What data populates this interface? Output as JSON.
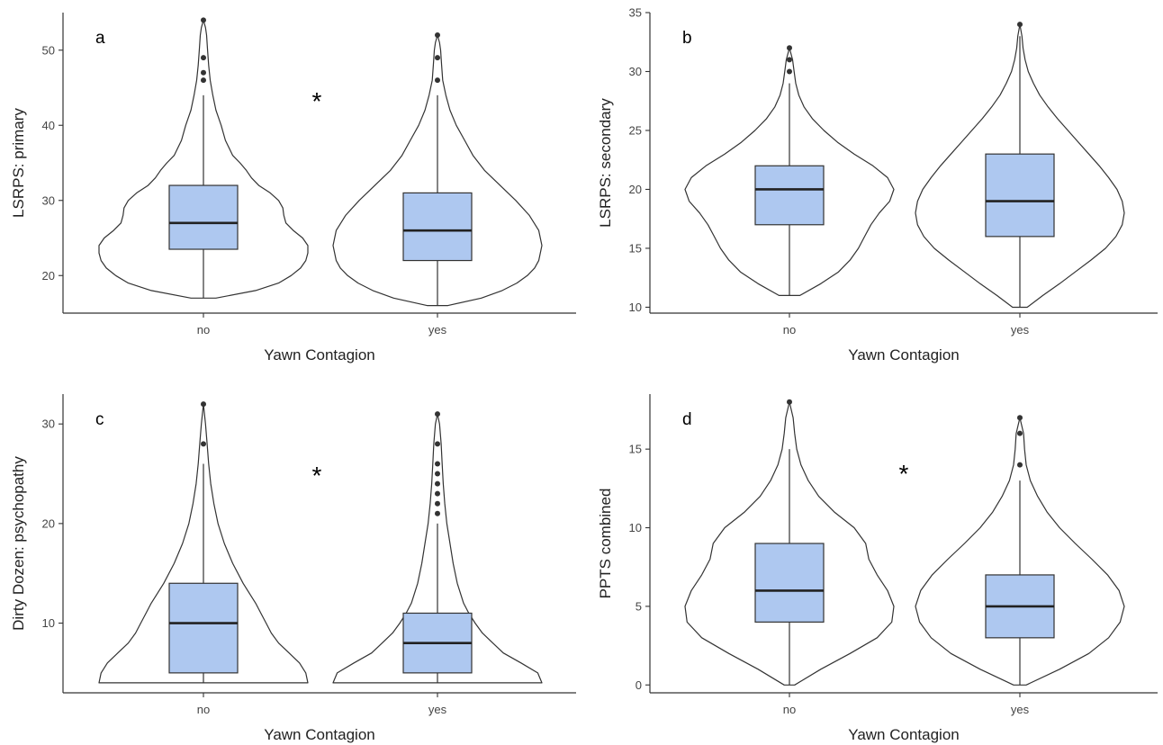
{
  "figure": {
    "background": "#ffffff",
    "box_color": "#aec8f0"
  },
  "chart_data": [
    {
      "panel": "a",
      "type": "violin-box",
      "xlabel": "Yawn Contagion",
      "ylabel": "LSRPS: primary",
      "ylim": [
        15,
        55
      ],
      "yticks": [
        20,
        30,
        40,
        50
      ],
      "significance": "*",
      "categories": [
        "no",
        "yes"
      ],
      "groups": [
        {
          "name": "no",
          "q1": 23.5,
          "median": 27,
          "q3": 32,
          "whisker_low": 17,
          "whisker_high": 44,
          "outliers": [
            46,
            47,
            49,
            54
          ],
          "density": [
            [
              17,
              0.12
            ],
            [
              18,
              0.5
            ],
            [
              19,
              0.72
            ],
            [
              20,
              0.84
            ],
            [
              21,
              0.93
            ],
            [
              22,
              0.98
            ],
            [
              23,
              1.0
            ],
            [
              24,
              1.0
            ],
            [
              25,
              0.95
            ],
            [
              26,
              0.86
            ],
            [
              27,
              0.79
            ],
            [
              28,
              0.77
            ],
            [
              29,
              0.76
            ],
            [
              30,
              0.72
            ],
            [
              31,
              0.64
            ],
            [
              32,
              0.53
            ],
            [
              33,
              0.46
            ],
            [
              34,
              0.41
            ],
            [
              35,
              0.35
            ],
            [
              36,
              0.28
            ],
            [
              38,
              0.21
            ],
            [
              40,
              0.17
            ],
            [
              42,
              0.12
            ],
            [
              44,
              0.09
            ],
            [
              46,
              0.065
            ],
            [
              48,
              0.05
            ],
            [
              50,
              0.04
            ],
            [
              52,
              0.03
            ],
            [
              53,
              0.02
            ],
            [
              54,
              0.0
            ]
          ]
        },
        {
          "name": "yes",
          "q1": 22,
          "median": 26,
          "q3": 31,
          "whisker_low": 16,
          "whisker_high": 44,
          "outliers": [
            46,
            49,
            52
          ],
          "density": [
            [
              16,
              0.1
            ],
            [
              17,
              0.42
            ],
            [
              18,
              0.62
            ],
            [
              19,
              0.76
            ],
            [
              20,
              0.86
            ],
            [
              21,
              0.93
            ],
            [
              22,
              0.97
            ],
            [
              24,
              1.0
            ],
            [
              26,
              0.97
            ],
            [
              28,
              0.88
            ],
            [
              30,
              0.75
            ],
            [
              32,
              0.6
            ],
            [
              34,
              0.45
            ],
            [
              36,
              0.34
            ],
            [
              38,
              0.26
            ],
            [
              40,
              0.18
            ],
            [
              42,
              0.12
            ],
            [
              44,
              0.08
            ],
            [
              46,
              0.05
            ],
            [
              48,
              0.04
            ],
            [
              50,
              0.03
            ],
            [
              51,
              0.02
            ],
            [
              52,
              0.0
            ]
          ]
        }
      ]
    },
    {
      "panel": "b",
      "type": "violin-box",
      "xlabel": "Yawn Contagion",
      "ylabel": "LSRPS: secondary",
      "ylim": [
        9.5,
        35
      ],
      "yticks": [
        10,
        15,
        20,
        25,
        30,
        35
      ],
      "significance": "",
      "categories": [
        "no",
        "yes"
      ],
      "groups": [
        {
          "name": "no",
          "q1": 17,
          "median": 20,
          "q3": 22,
          "whisker_low": 11,
          "whisker_high": 29,
          "outliers": [
            30,
            31,
            32
          ],
          "density": [
            [
              11,
              0.1
            ],
            [
              12,
              0.3
            ],
            [
              13,
              0.47
            ],
            [
              14,
              0.58
            ],
            [
              15,
              0.66
            ],
            [
              16,
              0.72
            ],
            [
              17,
              0.78
            ],
            [
              18,
              0.86
            ],
            [
              19,
              0.96
            ],
            [
              20,
              1.0
            ],
            [
              21,
              0.94
            ],
            [
              22,
              0.8
            ],
            [
              23,
              0.62
            ],
            [
              24,
              0.46
            ],
            [
              25,
              0.33
            ],
            [
              26,
              0.22
            ],
            [
              27,
              0.14
            ],
            [
              28,
              0.09
            ],
            [
              29,
              0.06
            ],
            [
              30,
              0.045
            ],
            [
              31,
              0.03
            ],
            [
              32,
              0.0
            ]
          ]
        },
        {
          "name": "yes",
          "q1": 16,
          "median": 19,
          "q3": 23,
          "whisker_low": 10,
          "whisker_high": 33,
          "outliers": [
            34
          ],
          "density": [
            [
              10,
              0.07
            ],
            [
              11,
              0.22
            ],
            [
              12,
              0.38
            ],
            [
              13,
              0.53
            ],
            [
              14,
              0.68
            ],
            [
              15,
              0.82
            ],
            [
              16,
              0.92
            ],
            [
              17,
              0.98
            ],
            [
              18,
              1.0
            ],
            [
              19,
              0.98
            ],
            [
              20,
              0.93
            ],
            [
              21,
              0.85
            ],
            [
              22,
              0.76
            ],
            [
              23,
              0.66
            ],
            [
              24,
              0.56
            ],
            [
              25,
              0.46
            ],
            [
              26,
              0.36
            ],
            [
              27,
              0.27
            ],
            [
              28,
              0.19
            ],
            [
              29,
              0.13
            ],
            [
              30,
              0.08
            ],
            [
              31,
              0.05
            ],
            [
              32,
              0.03
            ],
            [
              33,
              0.02
            ],
            [
              34,
              0.0
            ]
          ]
        }
      ]
    },
    {
      "panel": "c",
      "type": "violin-box",
      "xlabel": "Yawn Contagion",
      "ylabel": "Dirty Dozen: psychopathy",
      "ylim": [
        3,
        33
      ],
      "yticks": [
        10,
        20,
        30
      ],
      "significance": "*",
      "categories": [
        "no",
        "yes"
      ],
      "groups": [
        {
          "name": "no",
          "q1": 5,
          "median": 10,
          "q3": 14,
          "whisker_low": 4,
          "whisker_high": 26,
          "outliers": [
            28,
            32
          ],
          "density": [
            [
              4,
              1.0
            ],
            [
              5,
              0.98
            ],
            [
              6,
              0.92
            ],
            [
              7,
              0.82
            ],
            [
              8,
              0.72
            ],
            [
              9,
              0.65
            ],
            [
              10,
              0.6
            ],
            [
              11,
              0.55
            ],
            [
              12,
              0.5
            ],
            [
              13,
              0.44
            ],
            [
              14,
              0.38
            ],
            [
              16,
              0.28
            ],
            [
              18,
              0.2
            ],
            [
              20,
              0.14
            ],
            [
              22,
              0.1
            ],
            [
              24,
              0.07
            ],
            [
              26,
              0.05
            ],
            [
              28,
              0.035
            ],
            [
              30,
              0.02
            ],
            [
              32,
              0.0
            ]
          ]
        },
        {
          "name": "yes",
          "q1": 5,
          "median": 8,
          "q3": 11,
          "whisker_low": 4,
          "whisker_high": 20,
          "outliers": [
            21,
            22,
            23,
            24,
            25,
            26,
            28,
            31
          ],
          "density": [
            [
              4,
              1.0
            ],
            [
              5,
              0.96
            ],
            [
              6,
              0.8
            ],
            [
              7,
              0.63
            ],
            [
              8,
              0.53
            ],
            [
              9,
              0.43
            ],
            [
              10,
              0.36
            ],
            [
              11,
              0.3
            ],
            [
              12,
              0.25
            ],
            [
              14,
              0.19
            ],
            [
              16,
              0.15
            ],
            [
              18,
              0.12
            ],
            [
              20,
              0.09
            ],
            [
              22,
              0.07
            ],
            [
              24,
              0.055
            ],
            [
              26,
              0.045
            ],
            [
              28,
              0.035
            ],
            [
              30,
              0.02
            ],
            [
              31,
              0.0
            ]
          ]
        }
      ]
    },
    {
      "panel": "d",
      "type": "violin-box",
      "xlabel": "Yawn Contagion",
      "ylabel": "PPTS combined",
      "ylim": [
        -0.5,
        18.5
      ],
      "yticks": [
        0,
        5,
        10,
        15
      ],
      "significance": "*",
      "categories": [
        "no",
        "yes"
      ],
      "groups": [
        {
          "name": "no",
          "q1": 4,
          "median": 6,
          "q3": 9,
          "whisker_low": 0,
          "whisker_high": 15,
          "outliers": [
            18
          ],
          "density": [
            [
              0,
              0.05
            ],
            [
              1,
              0.3
            ],
            [
              2,
              0.58
            ],
            [
              3,
              0.84
            ],
            [
              4,
              0.98
            ],
            [
              5,
              1.0
            ],
            [
              6,
              0.94
            ],
            [
              7,
              0.84
            ],
            [
              8,
              0.76
            ],
            [
              9,
              0.73
            ],
            [
              10,
              0.62
            ],
            [
              11,
              0.43
            ],
            [
              12,
              0.28
            ],
            [
              13,
              0.18
            ],
            [
              14,
              0.11
            ],
            [
              15,
              0.07
            ],
            [
              16,
              0.05
            ],
            [
              17,
              0.035
            ],
            [
              18,
              0.0
            ]
          ]
        },
        {
          "name": "yes",
          "q1": 3,
          "median": 5,
          "q3": 7,
          "whisker_low": 0,
          "whisker_high": 13,
          "outliers": [
            14,
            16,
            17
          ],
          "density": [
            [
              0,
              0.06
            ],
            [
              1,
              0.38
            ],
            [
              2,
              0.66
            ],
            [
              3,
              0.85
            ],
            [
              4,
              0.96
            ],
            [
              5,
              1.0
            ],
            [
              6,
              0.95
            ],
            [
              7,
              0.84
            ],
            [
              8,
              0.69
            ],
            [
              9,
              0.53
            ],
            [
              10,
              0.38
            ],
            [
              11,
              0.26
            ],
            [
              12,
              0.17
            ],
            [
              13,
              0.1
            ],
            [
              14,
              0.06
            ],
            [
              15,
              0.045
            ],
            [
              16,
              0.035
            ],
            [
              17,
              0.0
            ]
          ]
        }
      ]
    }
  ]
}
